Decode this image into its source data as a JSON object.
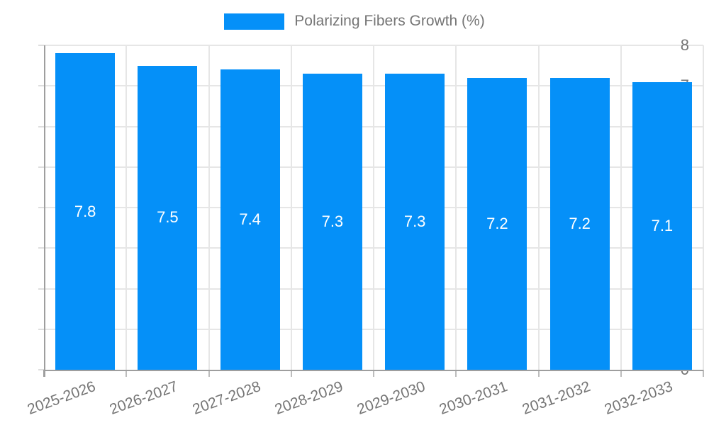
{
  "legend": {
    "label": "Polarizing Fibers Growth (%)"
  },
  "chart_data": {
    "type": "bar",
    "title": "Polarizing Fibers Growth (%)",
    "categories": [
      "2025-2026",
      "2026-2027",
      "2027-2028",
      "2028-2029",
      "2029-2030",
      "2030-2031",
      "2031-2032",
      "2032-2033"
    ],
    "values": [
      7.8,
      7.5,
      7.4,
      7.3,
      7.3,
      7.2,
      7.2,
      7.1
    ],
    "bar_labels": [
      "7.8",
      "7.5",
      "7.4",
      "7.3",
      "7.3",
      "7.2",
      "7.2",
      "7.1"
    ],
    "xlabel": "",
    "ylabel": "",
    "ylim": [
      0,
      8
    ],
    "yticks": [
      0,
      1,
      2,
      3,
      4,
      5,
      6,
      7,
      8
    ],
    "grid": true,
    "legend_position": "top-center",
    "colors": {
      "bar": "#0590F8",
      "grid": "#e6e6e6",
      "axis": "#9e9e9e",
      "tick": "#bdbdbd",
      "ytick_dash": "#dedede",
      "text": "#757575",
      "bar_label_text": "#ffffff",
      "background": "#ffffff"
    }
  }
}
